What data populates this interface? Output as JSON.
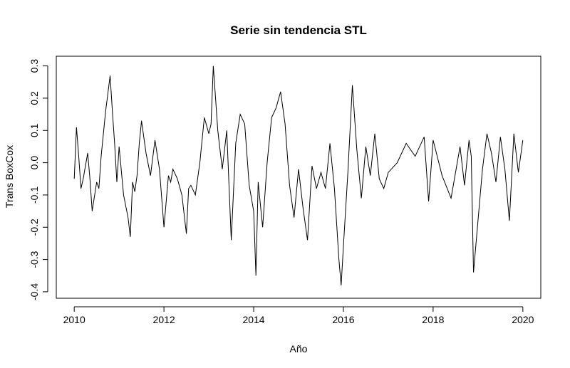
{
  "chart_data": {
    "type": "line",
    "title": "Serie sin tendencia STL",
    "xlabel": "Año",
    "ylabel": "Trans BoxCox",
    "xlim": [
      2009.6,
      2020.4
    ],
    "ylim": [
      -0.42,
      0.33
    ],
    "x_ticks": [
      2010,
      2012,
      2014,
      2016,
      2018,
      2020
    ],
    "x_tick_labels": [
      "2010",
      "2012",
      "2014",
      "2016",
      "2018",
      "2020"
    ],
    "y_ticks": [
      -0.4,
      -0.3,
      -0.2,
      -0.1,
      0.0,
      0.1,
      0.2,
      0.3
    ],
    "y_tick_labels": [
      "-0.4",
      "-0.3",
      "-0.2",
      "-0.1",
      "0.0",
      "0.1",
      "0.2",
      "0.3"
    ],
    "grid": false,
    "legend": "none",
    "line_color": "#000000",
    "series": [
      {
        "x": [
          2010.0,
          2010.05,
          2010.1,
          2010.15,
          2010.2,
          2010.3,
          2010.35,
          2010.4,
          2010.5,
          2010.55,
          2010.6,
          2010.7,
          2010.8,
          2010.85,
          2010.9,
          2010.95,
          2011.0,
          2011.1,
          2011.2,
          2011.25,
          2011.3,
          2011.35,
          2011.4,
          2011.45,
          2011.5,
          2011.6,
          2011.7,
          2011.8,
          2011.9,
          2012.0,
          2012.1,
          2012.15,
          2012.2,
          2012.3,
          2012.4,
          2012.5,
          2012.55,
          2012.6,
          2012.7,
          2012.8,
          2012.9,
          2013.0,
          2013.05,
          2013.1,
          2013.2,
          2013.3,
          2013.4,
          2013.5,
          2013.6,
          2013.7,
          2013.8,
          2013.9,
          2014.0,
          2014.05,
          2014.1,
          2014.2,
          2014.3,
          2014.4,
          2014.5,
          2014.6,
          2014.7,
          2014.8,
          2014.9,
          2015.0,
          2015.1,
          2015.2,
          2015.3,
          2015.4,
          2015.5,
          2015.6,
          2015.7,
          2015.8,
          2015.9,
          2015.95,
          2016.0,
          2016.1,
          2016.2,
          2016.3,
          2016.4,
          2016.5,
          2016.6,
          2016.7,
          2016.8,
          2016.9,
          2017.0,
          2017.2,
          2017.4,
          2017.6,
          2017.8,
          2017.9,
          2018.0,
          2018.2,
          2018.4,
          2018.6,
          2018.7,
          2018.8,
          2018.85,
          2018.9,
          2019.0,
          2019.1,
          2019.2,
          2019.3,
          2019.4,
          2019.5,
          2019.6,
          2019.7,
          2019.8,
          2019.9,
          2020.0
        ],
        "y": [
          -0.05,
          0.11,
          0.02,
          -0.08,
          -0.05,
          0.03,
          -0.05,
          -0.15,
          -0.06,
          -0.08,
          0.02,
          0.16,
          0.27,
          0.16,
          0.06,
          -0.06,
          0.05,
          -0.1,
          -0.17,
          -0.23,
          -0.06,
          -0.09,
          -0.04,
          0.06,
          0.13,
          0.03,
          -0.04,
          0.07,
          -0.02,
          -0.2,
          -0.04,
          -0.06,
          -0.02,
          -0.05,
          -0.1,
          -0.22,
          -0.08,
          -0.07,
          -0.1,
          0.0,
          0.14,
          0.09,
          0.12,
          0.3,
          0.1,
          -0.02,
          0.1,
          -0.24,
          0.06,
          0.15,
          0.12,
          -0.07,
          -0.15,
          -0.35,
          -0.06,
          -0.2,
          0.0,
          0.14,
          0.17,
          0.22,
          0.12,
          -0.07,
          -0.17,
          -0.02,
          -0.14,
          -0.24,
          -0.01,
          -0.08,
          -0.03,
          -0.08,
          0.06,
          -0.08,
          -0.3,
          -0.38,
          -0.26,
          -0.03,
          0.24,
          0.04,
          -0.11,
          0.05,
          -0.04,
          0.09,
          -0.05,
          -0.08,
          -0.03,
          0.0,
          0.06,
          0.02,
          0.08,
          -0.12,
          0.07,
          -0.04,
          -0.11,
          0.05,
          -0.07,
          0.07,
          0.02,
          -0.34,
          -0.18,
          -0.02,
          0.09,
          0.03,
          -0.06,
          0.08,
          -0.02,
          -0.18,
          0.09,
          -0.03,
          0.07
        ]
      }
    ]
  }
}
